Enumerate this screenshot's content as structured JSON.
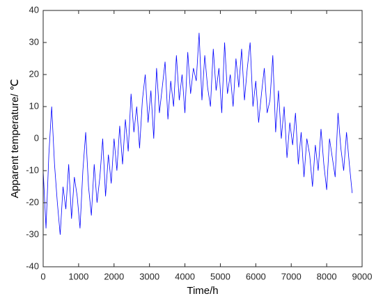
{
  "chart_data": {
    "type": "line",
    "xlabel": "Time/h",
    "ylabel": "Apparent temperature/ ℃",
    "xlim": [
      0,
      9000
    ],
    "xticks": [
      0,
      1000,
      2000,
      3000,
      4000,
      5000,
      6000,
      7000,
      8000,
      9000
    ],
    "ylim": [
      -40,
      40
    ],
    "yticks": [
      -40,
      -30,
      -20,
      -10,
      0,
      10,
      20,
      30,
      40
    ],
    "grid": false,
    "x": [
      0,
      80,
      160,
      240,
      320,
      400,
      480,
      560,
      640,
      720,
      800,
      880,
      960,
      1040,
      1120,
      1200,
      1280,
      1360,
      1440,
      1520,
      1600,
      1680,
      1760,
      1840,
      1920,
      2000,
      2080,
      2160,
      2240,
      2320,
      2400,
      2480,
      2560,
      2640,
      2720,
      2800,
      2880,
      2960,
      3040,
      3120,
      3200,
      3280,
      3360,
      3440,
      3520,
      3600,
      3680,
      3760,
      3840,
      3920,
      4000,
      4080,
      4160,
      4240,
      4320,
      4400,
      4480,
      4560,
      4640,
      4720,
      4800,
      4880,
      4960,
      5040,
      5120,
      5200,
      5280,
      5360,
      5440,
      5520,
      5600,
      5680,
      5760,
      5840,
      5920,
      6000,
      6080,
      6160,
      6240,
      6320,
      6400,
      6480,
      6560,
      6640,
      6720,
      6800,
      6880,
      6960,
      7040,
      7120,
      7200,
      7280,
      7360,
      7440,
      7520,
      7600,
      7680,
      7760,
      7840,
      7920,
      8000,
      8080,
      8160,
      8240,
      8320,
      8400,
      8480,
      8560,
      8640,
      8720
    ],
    "series": [
      {
        "color": "#0000ff",
        "values": [
          -10,
          -28,
          -5,
          10,
          -8,
          -20,
          -30,
          -15,
          -22,
          -8,
          -25,
          -12,
          -18,
          -28,
          -10,
          2,
          -15,
          -24,
          -8,
          -20,
          -12,
          0,
          -18,
          -5,
          -14,
          0,
          -10,
          4,
          -8,
          6,
          -4,
          14,
          2,
          10,
          -3,
          12,
          20,
          5,
          15,
          0,
          22,
          8,
          16,
          24,
          6,
          18,
          10,
          26,
          12,
          20,
          8,
          27,
          14,
          22,
          18,
          33,
          12,
          26,
          16,
          10,
          28,
          15,
          22,
          8,
          30,
          14,
          20,
          10,
          25,
          16,
          28,
          12,
          22,
          30,
          10,
          18,
          5,
          14,
          22,
          8,
          12,
          26,
          2,
          15,
          0,
          10,
          -6,
          5,
          -2,
          8,
          -8,
          2,
          -12,
          0,
          -5,
          -15,
          -2,
          -10,
          3,
          -8,
          -16,
          0,
          -6,
          -12,
          8,
          -3,
          -10,
          2,
          -8,
          -17
        ]
      }
    ]
  }
}
